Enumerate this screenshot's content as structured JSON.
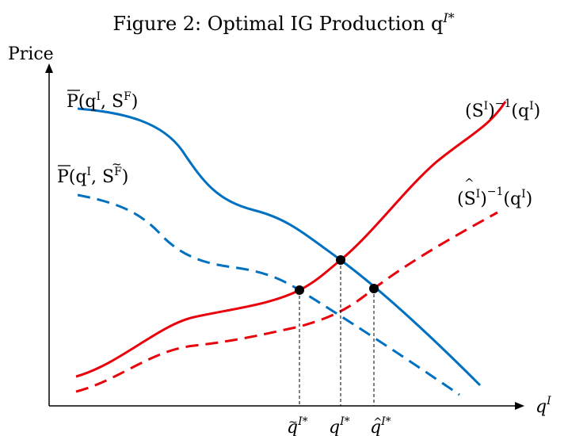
{
  "figure": {
    "title": "Figure 2: Optimal IG Production q",
    "title_sup": "I*"
  },
  "axes": {
    "y_label": "Price",
    "x_label": "q",
    "x_label_sup": "I"
  },
  "curves": {
    "demand_solid": {
      "base": "P(q",
      "sup": "I",
      "rest": ", S",
      "sup2": "F",
      "end": ")",
      "color": "#0070c0"
    },
    "demand_dashed": {
      "base": "P(q",
      "sup": "I",
      "rest": ", S",
      "sup2": "F",
      "end": ")",
      "color": "#0070c0"
    },
    "supply_solid": {
      "base": "(S",
      "sup": "I",
      "mid": ")",
      "sup2": "−1",
      "rest": "(q",
      "sup3": "I",
      "end": ")",
      "color": "#e8000b"
    },
    "supply_dashed": {
      "base": "(S",
      "sup": "I",
      "mid": ")",
      "sup2": "−1",
      "rest": "(q",
      "sup3": "I",
      "end": ")",
      "color": "#e8000b"
    }
  },
  "x_ticks": [
    {
      "base": "q",
      "sup": "I*",
      "accent": "~"
    },
    {
      "base": "q",
      "sup": "I*",
      "accent": ""
    },
    {
      "base": "q",
      "sup": "I*",
      "accent": "^"
    }
  ],
  "colors": {
    "blue": "#0070c0",
    "red": "#e8000b",
    "black": "#000000"
  }
}
